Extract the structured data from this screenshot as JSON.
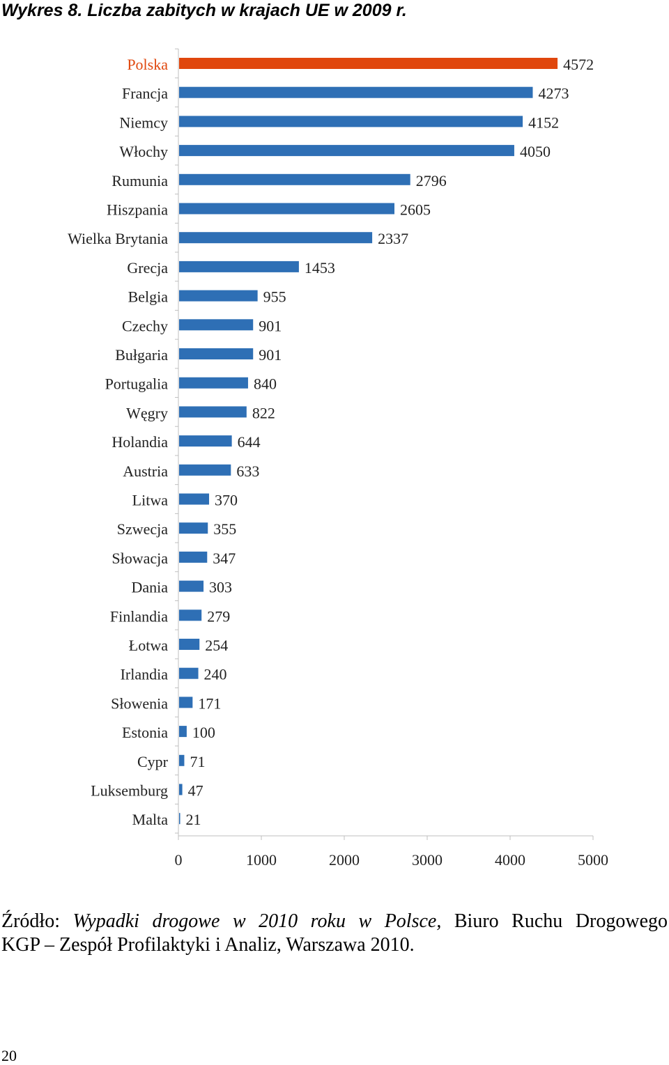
{
  "page": {
    "title": "Wykres 8. Liczba zabitych w krajach UE w 2009 r.",
    "source_prefix": "Źródło: ",
    "source_title": "Wypadki drogowe w 2010 roku w Polsce,",
    "source_publisher": " Biuro Ruchu Drogowego",
    "source_line2": "KGP – Zespół Profilaktyki i Analiz, Warszawa 2010.",
    "page_number": "20"
  },
  "chart_data": {
    "type": "bar",
    "orientation": "horizontal",
    "categories": [
      "Polska",
      "Francja",
      "Niemcy",
      "Włochy",
      "Rumunia",
      "Hiszpania",
      "Wielka Brytania",
      "Grecja",
      "Belgia",
      "Czechy",
      "Bułgaria",
      "Portugalia",
      "Węgry",
      "Holandia",
      "Austria",
      "Litwa",
      "Szwecja",
      "Słowacja",
      "Dania",
      "Finlandia",
      "Łotwa",
      "Irlandia",
      "Słowenia",
      "Estonia",
      "Cypr",
      "Luksemburg",
      "Malta"
    ],
    "values": [
      4572,
      4273,
      4152,
      4050,
      2796,
      2605,
      2337,
      1453,
      955,
      901,
      901,
      840,
      822,
      644,
      633,
      370,
      355,
      347,
      303,
      279,
      254,
      240,
      171,
      100,
      71,
      47,
      21
    ],
    "value_labels": [
      "4572",
      "4273",
      "4152",
      "4050",
      "2796",
      "2605",
      "2337",
      "1453",
      "955",
      "901",
      "901",
      "840",
      "822",
      "644",
      "633",
      "370",
      "355",
      "347",
      "303",
      "279",
      "254",
      "240",
      "171",
      "100",
      "71",
      "47",
      "21"
    ],
    "highlight_category": "Polska",
    "xlim": [
      0,
      5000
    ],
    "xticks": [
      0,
      1000,
      2000,
      3000,
      4000,
      5000
    ],
    "xtick_labels": [
      "0",
      "1000",
      "2000",
      "3000",
      "4000",
      "5000"
    ],
    "grid": false,
    "colors": {
      "bar": "#2e6fb5",
      "highlight": "#e0470d",
      "highlight_label": "#e0470d",
      "axis": "#bfbfbf"
    }
  }
}
